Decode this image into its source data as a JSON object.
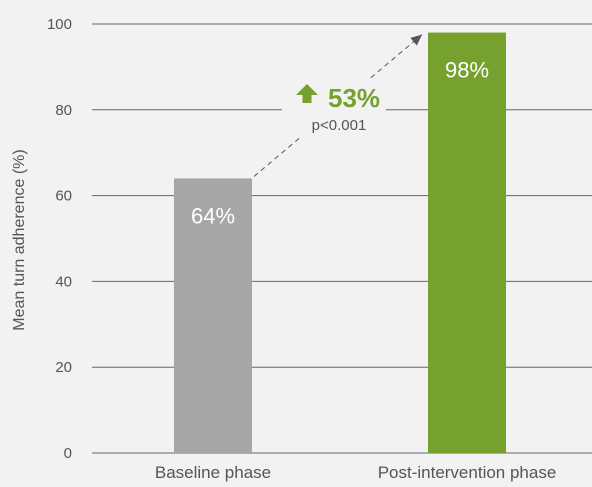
{
  "chart_data": {
    "type": "bar",
    "categories": [
      "Baseline phase",
      "Post-intervention phase"
    ],
    "values": [
      64,
      98
    ],
    "value_labels": [
      "64%",
      "98%"
    ],
    "bar_colors": [
      "#a6a6a4",
      "#76a12e"
    ],
    "ylabel": "Mean turn adherence (%)",
    "xlabel": "",
    "ylim": [
      0,
      100
    ],
    "yticks": [
      0,
      20,
      40,
      60,
      80,
      100
    ],
    "grid": true,
    "annotation": {
      "change_text": "53%",
      "direction": "up",
      "p_value_text": "p<0.001",
      "color": "#76a12e"
    }
  }
}
